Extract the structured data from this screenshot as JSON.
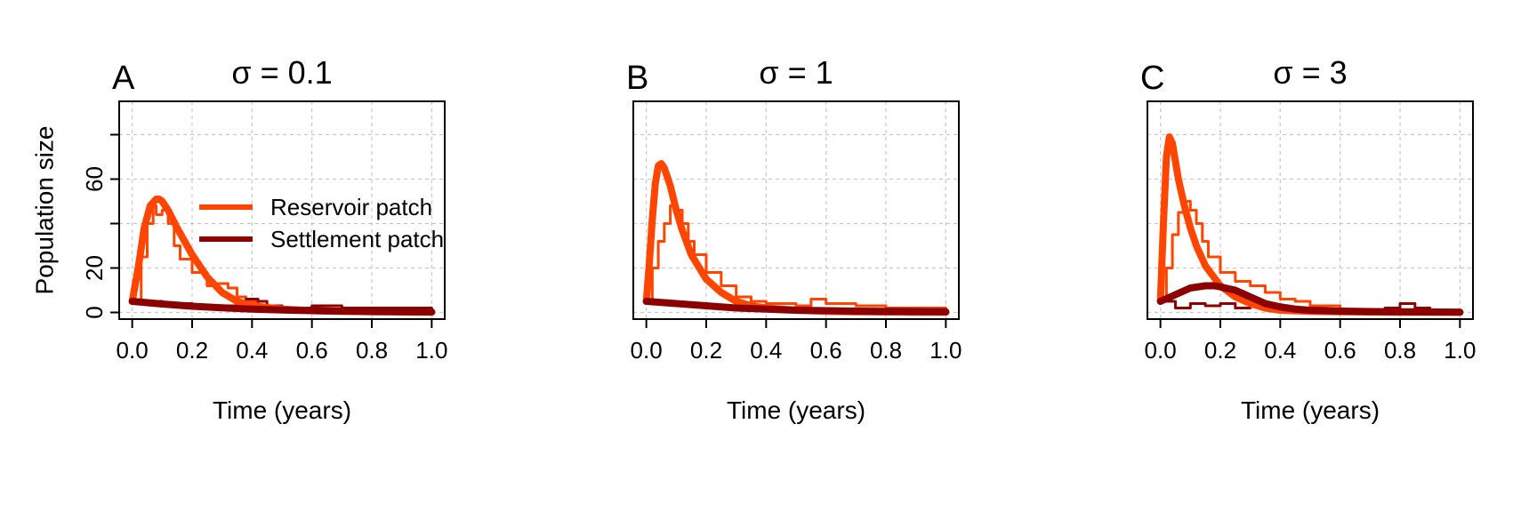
{
  "colors": {
    "reservoir": "#ff4500",
    "settlement": "#8b0000",
    "grid": "#c8c8c8",
    "frame": "#000000"
  },
  "legend": {
    "entries": [
      {
        "label": "Reservoir patch",
        "color": "#ff4500"
      },
      {
        "label": "Settlement patch",
        "color": "#8b0000"
      }
    ],
    "panel_index": 0
  },
  "chart_data": [
    {
      "type": "line",
      "panel": "A",
      "title": "σ = 0.1",
      "xlabel": "Time (years)",
      "ylabel": "Population size",
      "xlim": [
        0,
        1
      ],
      "ylim": [
        -3,
        95
      ],
      "xticks": [
        0.0,
        0.2,
        0.4,
        0.6,
        0.8,
        1.0
      ],
      "xtick_labels": [
        "0.0",
        "0.2",
        "0.4",
        "0.6",
        "0.8",
        "1.0"
      ],
      "yticks": [
        0,
        20,
        40,
        60,
        80
      ],
      "ytick_labels": [
        "0",
        "20",
        "",
        "60",
        ""
      ],
      "grid": true,
      "series": [
        {
          "name": "Reservoir patch",
          "style": "deterministic",
          "color": "#ff4500",
          "x": [
            0,
            0.02,
            0.04,
            0.06,
            0.08,
            0.09,
            0.1,
            0.12,
            0.15,
            0.2,
            0.25,
            0.3,
            0.35,
            0.4,
            0.5,
            0.6,
            0.7,
            0.8,
            0.9,
            1.0
          ],
          "y": [
            5,
            20,
            38,
            48,
            51,
            51,
            50,
            46,
            38,
            26,
            16,
            9,
            5,
            3,
            1.5,
            0.8,
            0.5,
            0.3,
            0.2,
            0.1
          ]
        },
        {
          "name": "Settlement patch",
          "style": "deterministic",
          "color": "#8b0000",
          "x": [
            0,
            0.1,
            0.2,
            0.3,
            0.4,
            0.5,
            0.6,
            0.7,
            0.8,
            0.9,
            1.0
          ],
          "y": [
            5,
            3.8,
            2.8,
            2.1,
            1.5,
            1.1,
            0.8,
            0.6,
            0.45,
            0.35,
            0.25
          ]
        },
        {
          "name": "Reservoir patch",
          "style": "stochastic",
          "color": "#ff4500",
          "x": [
            0,
            0.03,
            0.05,
            0.07,
            0.08,
            0.1,
            0.12,
            0.14,
            0.16,
            0.2,
            0.25,
            0.28,
            0.32,
            0.35,
            0.38,
            0.42,
            0.5,
            0.6,
            0.7,
            0.8,
            0.9,
            1.0
          ],
          "y": [
            5,
            25,
            40,
            48,
            44,
            46,
            40,
            30,
            24,
            18,
            12,
            13,
            11,
            7,
            5,
            3,
            1,
            1,
            1,
            0,
            0,
            0
          ]
        },
        {
          "name": "Settlement patch",
          "style": "stochastic",
          "color": "#8b0000",
          "x": [
            0,
            0.05,
            0.1,
            0.15,
            0.2,
            0.25,
            0.3,
            0.35,
            0.38,
            0.42,
            0.45,
            0.5,
            0.6,
            0.7,
            0.8,
            0.9,
            1.0
          ],
          "y": [
            5,
            5,
            3,
            4,
            3,
            2,
            3,
            4,
            6,
            5,
            3,
            2,
            3,
            2,
            2,
            2,
            1
          ]
        }
      ]
    },
    {
      "type": "line",
      "panel": "B",
      "title": "σ = 1",
      "xlabel": "Time (years)",
      "ylabel": "",
      "xlim": [
        0,
        1
      ],
      "ylim": [
        -3,
        95
      ],
      "xticks": [
        0.0,
        0.2,
        0.4,
        0.6,
        0.8,
        1.0
      ],
      "xtick_labels": [
        "0.0",
        "0.2",
        "0.4",
        "0.6",
        "0.8",
        "1.0"
      ],
      "yticks": [
        0,
        20,
        40,
        60,
        80
      ],
      "ytick_labels": [],
      "grid": true,
      "series": [
        {
          "name": "Reservoir patch",
          "style": "deterministic",
          "color": "#ff4500",
          "x": [
            0,
            0.01,
            0.02,
            0.03,
            0.04,
            0.05,
            0.06,
            0.08,
            0.1,
            0.12,
            0.15,
            0.2,
            0.25,
            0.3,
            0.35,
            0.4,
            0.5,
            0.6,
            0.7,
            0.8,
            0.9,
            1.0
          ],
          "y": [
            5,
            22,
            42,
            58,
            66,
            67,
            65,
            57,
            46,
            37,
            26,
            15,
            9,
            5,
            3,
            2,
            1,
            0.5,
            0.3,
            0.2,
            0.1,
            0.1
          ]
        },
        {
          "name": "Settlement patch",
          "style": "deterministic",
          "color": "#8b0000",
          "x": [
            0,
            0.1,
            0.2,
            0.3,
            0.4,
            0.5,
            0.6,
            0.7,
            0.8,
            0.9,
            1.0
          ],
          "y": [
            5,
            4,
            3,
            2,
            1.5,
            1,
            0.8,
            0.6,
            0.5,
            0.4,
            0.3
          ]
        },
        {
          "name": "Reservoir patch",
          "style": "stochastic",
          "color": "#ff4500",
          "x": [
            0,
            0.02,
            0.04,
            0.06,
            0.08,
            0.09,
            0.1,
            0.12,
            0.14,
            0.16,
            0.2,
            0.25,
            0.3,
            0.35,
            0.4,
            0.5,
            0.55,
            0.6,
            0.7,
            0.8,
            0.9,
            1.0
          ],
          "y": [
            5,
            20,
            32,
            40,
            48,
            50,
            46,
            40,
            32,
            26,
            18,
            12,
            7,
            5,
            4,
            3,
            6,
            4,
            3,
            2,
            2,
            2
          ]
        },
        {
          "name": "Settlement patch",
          "style": "stochastic",
          "color": "#8b0000",
          "x": [
            0,
            0.1,
            0.2,
            0.3,
            0.4,
            0.5,
            0.6,
            0.7,
            0.8,
            0.9,
            1.0
          ],
          "y": [
            5,
            4,
            3,
            3,
            2,
            1,
            1,
            0,
            0,
            0,
            0
          ]
        }
      ]
    },
    {
      "type": "line",
      "panel": "C",
      "title": "σ = 3",
      "xlabel": "Time (years)",
      "ylabel": "",
      "xlim": [
        0,
        1
      ],
      "ylim": [
        -3,
        95
      ],
      "xticks": [
        0.0,
        0.2,
        0.4,
        0.6,
        0.8,
        1.0
      ],
      "xtick_labels": [
        "0.0",
        "0.2",
        "0.4",
        "0.6",
        "0.8",
        "1.0"
      ],
      "yticks": [
        0,
        20,
        40,
        60,
        80
      ],
      "ytick_labels": [],
      "grid": true,
      "series": [
        {
          "name": "Reservoir patch",
          "style": "deterministic",
          "color": "#ff4500",
          "x": [
            0,
            0.01,
            0.02,
            0.03,
            0.04,
            0.05,
            0.06,
            0.08,
            0.1,
            0.12,
            0.15,
            0.2,
            0.25,
            0.3,
            0.35,
            0.4,
            0.5,
            0.6,
            0.7,
            0.8,
            0.9,
            1.0
          ],
          "y": [
            5,
            40,
            70,
            79,
            76,
            68,
            60,
            48,
            38,
            30,
            21,
            12,
            7,
            4,
            2,
            1,
            0.5,
            0.3,
            0.2,
            0.1,
            0.1,
            0.1
          ]
        },
        {
          "name": "Settlement patch",
          "style": "deterministic",
          "color": "#8b0000",
          "x": [
            0,
            0.05,
            0.1,
            0.15,
            0.18,
            0.2,
            0.25,
            0.3,
            0.35,
            0.4,
            0.45,
            0.5,
            0.6,
            0.7,
            0.8,
            0.9,
            1.0
          ],
          "y": [
            5,
            8,
            11,
            12,
            12,
            11.5,
            10,
            7,
            4,
            2.5,
            1.5,
            1,
            0.6,
            0.4,
            0.3,
            0.2,
            0.1
          ]
        },
        {
          "name": "Reservoir patch",
          "style": "stochastic",
          "color": "#ff4500",
          "x": [
            0,
            0.02,
            0.04,
            0.06,
            0.08,
            0.1,
            0.12,
            0.14,
            0.16,
            0.2,
            0.25,
            0.3,
            0.35,
            0.4,
            0.45,
            0.5,
            0.6,
            0.7,
            0.8,
            0.9,
            1.0
          ],
          "y": [
            5,
            20,
            35,
            45,
            50,
            46,
            40,
            32,
            25,
            18,
            14,
            12,
            9,
            6,
            5,
            3,
            1,
            1,
            1,
            0,
            0
          ]
        },
        {
          "name": "Settlement patch",
          "style": "stochastic",
          "color": "#8b0000",
          "x": [
            0,
            0.05,
            0.1,
            0.15,
            0.2,
            0.25,
            0.3,
            0.35,
            0.4,
            0.5,
            0.6,
            0.7,
            0.75,
            0.8,
            0.85,
            0.9,
            1.0
          ],
          "y": [
            5,
            2,
            4,
            3,
            4,
            2,
            3,
            2,
            1,
            1,
            0,
            0,
            2,
            4,
            2,
            1,
            0
          ]
        }
      ]
    }
  ]
}
